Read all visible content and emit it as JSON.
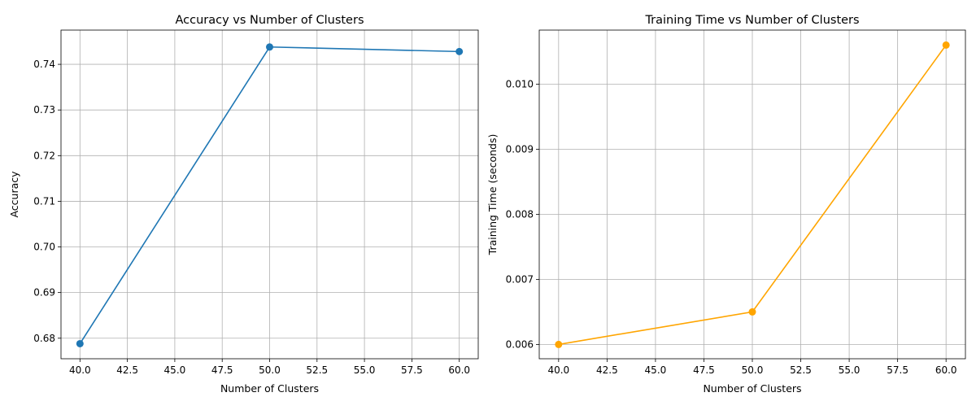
{
  "chart_data": [
    {
      "type": "line",
      "title": "Accuracy vs Number of Clusters",
      "xlabel": "Number of Clusters",
      "ylabel": "Accuracy",
      "x": [
        40,
        50,
        60
      ],
      "series": [
        {
          "values": [
            0.6788,
            0.7438,
            0.7428
          ],
          "color": "#1f77b4",
          "marker": "circle"
        }
      ],
      "xlim": [
        39,
        61
      ],
      "ylim": [
        0.6755,
        0.7475
      ],
      "xticks": [
        40,
        42.5,
        45,
        47.5,
        50,
        52.5,
        55,
        57.5,
        60
      ],
      "xtick_labels": [
        "40.0",
        "42.5",
        "45.0",
        "47.5",
        "50.0",
        "52.5",
        "55.0",
        "57.5",
        "60.0"
      ],
      "yticks": [
        0.68,
        0.69,
        0.7,
        0.71,
        0.72,
        0.73,
        0.74
      ],
      "ytick_labels": [
        "0.68",
        "0.69",
        "0.70",
        "0.71",
        "0.72",
        "0.73",
        "0.74"
      ],
      "grid": true,
      "legend": "none"
    },
    {
      "type": "line",
      "title": "Training Time vs Number of Clusters",
      "xlabel": "Number of Clusters",
      "ylabel": "Training Time (seconds)",
      "x": [
        40,
        50,
        60
      ],
      "series": [
        {
          "values": [
            0.006,
            0.0065,
            0.0106
          ],
          "color": "#ffa500",
          "marker": "circle"
        }
      ],
      "xlim": [
        39,
        61
      ],
      "ylim": [
        0.00578,
        0.01083
      ],
      "xticks": [
        40,
        42.5,
        45,
        47.5,
        50,
        52.5,
        55,
        57.5,
        60
      ],
      "xtick_labels": [
        "40.0",
        "42.5",
        "45.0",
        "47.5",
        "50.0",
        "52.5",
        "55.0",
        "57.5",
        "60.0"
      ],
      "yticks": [
        0.006,
        0.007,
        0.008,
        0.009,
        0.01
      ],
      "ytick_labels": [
        "0.006",
        "0.007",
        "0.008",
        "0.009",
        "0.010"
      ],
      "grid": true,
      "legend": "none"
    }
  ]
}
